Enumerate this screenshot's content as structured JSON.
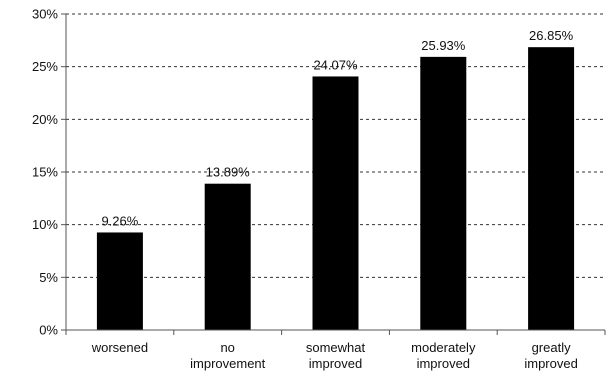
{
  "chart_data": {
    "type": "bar",
    "title": "",
    "xlabel": "",
    "ylabel": "",
    "categories": [
      [
        "worsened"
      ],
      [
        "no",
        "improvement"
      ],
      [
        "somewhat",
        "improved"
      ],
      [
        "moderately",
        "improved"
      ],
      [
        "greatly",
        "improved"
      ]
    ],
    "values": [
      9.26,
      13.89,
      24.07,
      25.93,
      26.85
    ],
    "data_labels": [
      "9.26%",
      "13.89%",
      "24.07%",
      "25.93%",
      "26.85%"
    ],
    "ylim": [
      0,
      30
    ],
    "yticks": [
      0,
      5,
      10,
      15,
      20,
      25,
      30
    ],
    "ytick_labels": [
      "0%",
      "5%",
      "10%",
      "15%",
      "20%",
      "25%",
      "30%"
    ],
    "grid": "horizontal-dashed",
    "legend": "none",
    "bar_color": "#000000",
    "axis_color": "#555555",
    "grid_color": "#333333"
  }
}
